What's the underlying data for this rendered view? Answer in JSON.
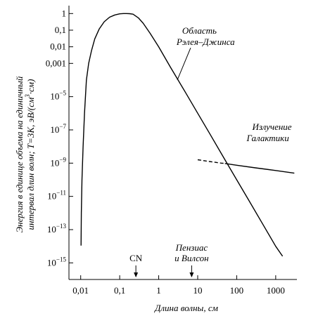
{
  "chart_data": {
    "type": "line",
    "xscale": "log",
    "yscale": "log",
    "xlim": [
      0.005,
      3500
    ],
    "ylim": [
      1e-16,
      3
    ],
    "grid": false,
    "legend": "none",
    "xlabel": "Длина волны, см",
    "ylabel_line1": "Энергия в единице объема на единичный",
    "ylabel_line2": "интервал длин волн; T=3K, эВ/(см",
    "ylabel_sup": "3",
    "ylabel_tail": "·см)",
    "x_ticks": [
      {
        "value": 0.01,
        "label": "0,01"
      },
      {
        "value": 0.1,
        "label": "0,1"
      },
      {
        "value": 1,
        "label": "1"
      },
      {
        "value": 10,
        "label": "10"
      },
      {
        "value": 100,
        "label": "100"
      },
      {
        "value": 1000,
        "label": "1000"
      }
    ],
    "y_ticks": [
      {
        "value": 1,
        "label": "1",
        "sup": ""
      },
      {
        "value": 0.1,
        "label": "0,1",
        "sup": ""
      },
      {
        "value": 0.01,
        "label": "0,01",
        "sup": ""
      },
      {
        "value": 0.001,
        "label": "0,001",
        "sup": ""
      },
      {
        "value": 1e-05,
        "label": "10",
        "sup": "−5"
      },
      {
        "value": 1e-07,
        "label": "10",
        "sup": "−7"
      },
      {
        "value": 1e-09,
        "label": "10",
        "sup": "−9"
      },
      {
        "value": 1e-11,
        "label": "10",
        "sup": "−11"
      },
      {
        "value": 1e-13,
        "label": "10",
        "sup": "−13"
      },
      {
        "value": 1e-15,
        "label": "10",
        "sup": "−15"
      }
    ],
    "series": [
      {
        "style": "solid",
        "x": [
          0.0102,
          0.0104,
          0.0108,
          0.0115,
          0.0125,
          0.014,
          0.016,
          0.019,
          0.023,
          0.03,
          0.04,
          0.055,
          0.075,
          0.1,
          0.125,
          0.15,
          0.18,
          0.22,
          0.3,
          0.4,
          0.6,
          1.0,
          2.0,
          5.0,
          10,
          20,
          50,
          100,
          200,
          500,
          1000,
          1500
        ],
        "y": [
          1.1e-14,
          1e-12,
          1e-10,
          1e-08,
          1e-06,
          0.0001,
          0.001,
          0.006,
          0.03,
          0.12,
          0.32,
          0.6,
          0.82,
          0.96,
          1.0,
          1.0,
          0.98,
          0.92,
          0.55,
          0.26,
          0.065,
          0.01,
          0.0006,
          1.6e-05,
          1e-06,
          6.3e-08,
          1.6e-09,
          1e-10,
          6.3e-12,
          1.6e-13,
          1e-14,
          2.5e-15
        ]
      },
      {
        "style": "dashed",
        "x": [
          10,
          20,
          40,
          50
        ],
        "y": [
          1.6e-09,
          1.25e-09,
          1e-09,
          9.5e-10
        ]
      },
      {
        "style": "solid",
        "x": [
          50,
          100,
          300,
          1000,
          3000
        ],
        "y": [
          9.5e-10,
          7.5e-10,
          5.2e-10,
          3.6e-10,
          2.5e-10
        ]
      }
    ],
    "annotations": [
      {
        "name": "rayleigh-jeans",
        "lines": [
          "Область",
          "Рэлея–Джинса"
        ],
        "style": "italic",
        "x": 4.0,
        "y": 0.06,
        "pointer_to": {
          "x": 3.0,
          "y": 0.0001
        }
      },
      {
        "name": "galaxy",
        "lines": [
          "Излучение",
          "Галактики"
        ],
        "style": "italic",
        "x": 250,
        "y": 1e-07
      },
      {
        "name": "cn",
        "lines": [
          "CN"
        ],
        "style": "upright",
        "x": 0.26,
        "arrow": true
      },
      {
        "name": "penzias",
        "lines": [
          "Пензиас",
          "и Вилсон"
        ],
        "style": "italic",
        "x": 7.0,
        "arrow": true
      }
    ]
  }
}
